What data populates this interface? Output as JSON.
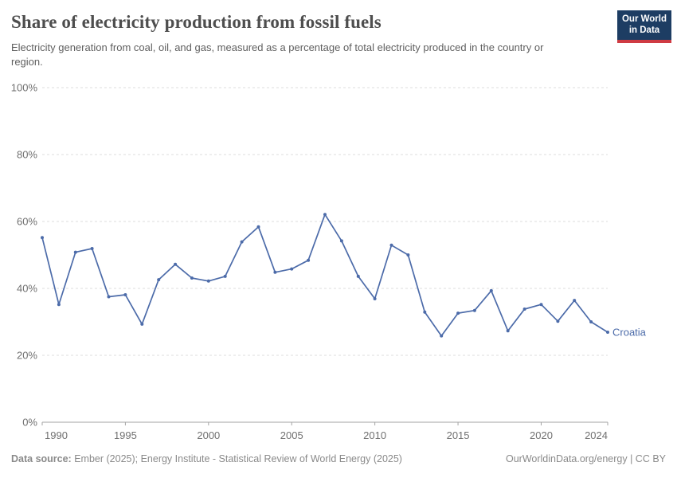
{
  "header": {
    "logo": {
      "line1": "Our World",
      "line2": "in Data",
      "bg_color": "#1d3d63",
      "accent_color": "#cf3b43"
    }
  },
  "chart_data": {
    "type": "line",
    "title": "Share of electricity production from fossil fuels",
    "subtitle": "Electricity generation from coal, oil, and gas, measured as a percentage of total electricity produced in the country or region.",
    "x": [
      1990,
      1991,
      1992,
      1993,
      1994,
      1995,
      1996,
      1997,
      1998,
      1999,
      2000,
      2001,
      2002,
      2003,
      2004,
      2005,
      2006,
      2007,
      2008,
      2009,
      2010,
      2011,
      2012,
      2013,
      2014,
      2015,
      2016,
      2017,
      2018,
      2019,
      2020,
      2021,
      2022,
      2023,
      2024
    ],
    "series": [
      {
        "name": "Croatia",
        "color": "#4c6ba9",
        "values": [
          55.2,
          35.2,
          50.8,
          51.9,
          37.5,
          38.1,
          29.3,
          42.6,
          47.2,
          43.1,
          42.2,
          43.6,
          53.9,
          58.4,
          44.8,
          45.8,
          48.4,
          62.1,
          54.2,
          43.6,
          36.9,
          52.9,
          50.0,
          32.9,
          25.8,
          32.6,
          33.4,
          39.3,
          27.3,
          33.8,
          35.2,
          30.2,
          36.4,
          30.0,
          26.9
        ]
      }
    ],
    "xlim": [
      1990,
      2024
    ],
    "ylim": [
      0,
      100
    ],
    "xticks": [
      1990,
      1995,
      2000,
      2005,
      2010,
      2015,
      2020,
      2024
    ],
    "yticks": [
      0,
      20,
      40,
      60,
      80,
      100
    ],
    "ytick_suffix": "%",
    "grid": "horizontal-dashed",
    "entity_label": "Croatia",
    "grid_color": "#dcdcdc",
    "axis_color": "#a3a3a3",
    "tick_label_color": "#707070"
  },
  "footer": {
    "source_label": "Data source:",
    "source_text": " Ember (2025); Energy Institute - Statistical Review of World Energy (2025)",
    "right_text": "OurWorldinData.org/energy | CC BY"
  }
}
